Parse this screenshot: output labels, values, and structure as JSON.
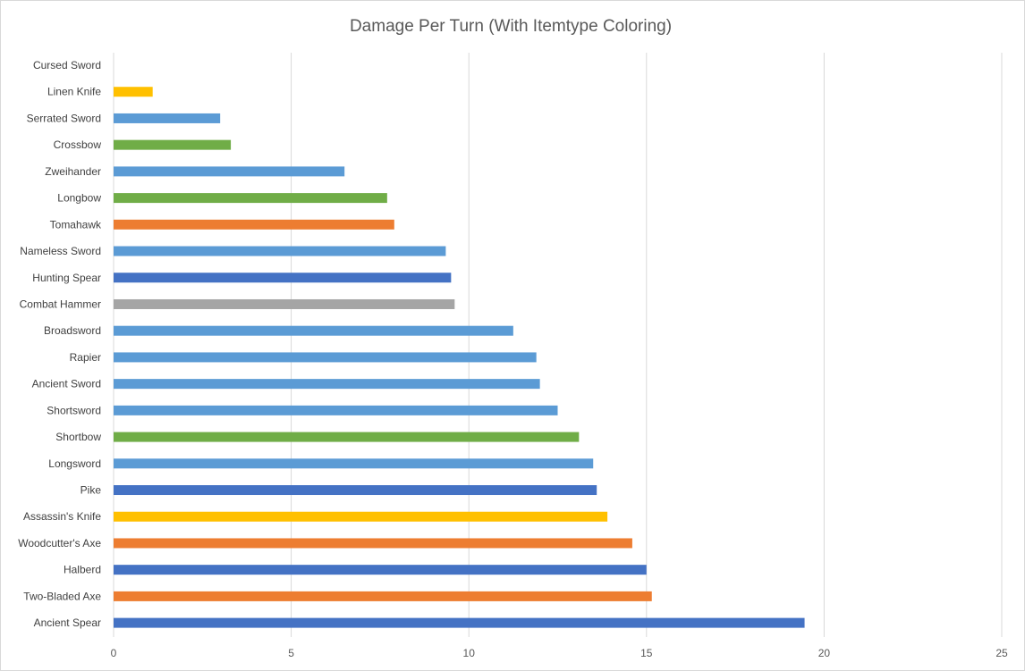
{
  "chart_data": {
    "type": "bar",
    "orientation": "horizontal",
    "title": "Damage Per Turn (With Itemtype Coloring)",
    "xlabel": "",
    "ylabel": "",
    "xlim": [
      0,
      25
    ],
    "x_ticks": [
      "0",
      "5",
      "10",
      "15",
      "20",
      "25"
    ],
    "grid": true,
    "legend": "none",
    "categories": [
      "Cursed Sword",
      "Linen Knife",
      "Serrated Sword",
      "Crossbow",
      "Zweihander",
      "Longbow",
      "Tomahawk",
      "Nameless Sword",
      "Hunting Spear",
      "Combat Hammer",
      "Broadsword",
      "Rapier",
      "Ancient Sword",
      "Shortsword",
      "Shortbow",
      "Longsword",
      "Pike",
      "Assassin's Knife",
      "Woodcutter's Axe",
      "Halberd",
      "Two-Bladed Axe",
      "Ancient Spear"
    ],
    "values": [
      0,
      1.1,
      3.0,
      3.3,
      6.5,
      7.7,
      7.9,
      9.35,
      9.5,
      9.6,
      11.25,
      11.9,
      12.0,
      12.5,
      13.1,
      13.5,
      13.6,
      13.9,
      14.6,
      15.0,
      15.15,
      19.45
    ],
    "bar_colors": [
      "#5b9bd5",
      "#ffc000",
      "#5b9bd5",
      "#70ad47",
      "#5b9bd5",
      "#70ad47",
      "#ed7d31",
      "#5b9bd5",
      "#4472c4",
      "#a5a5a5",
      "#5b9bd5",
      "#5b9bd5",
      "#5b9bd5",
      "#5b9bd5",
      "#70ad47",
      "#5b9bd5",
      "#4472c4",
      "#ffc000",
      "#ed7d31",
      "#4472c4",
      "#ed7d31",
      "#4472c4"
    ]
  }
}
